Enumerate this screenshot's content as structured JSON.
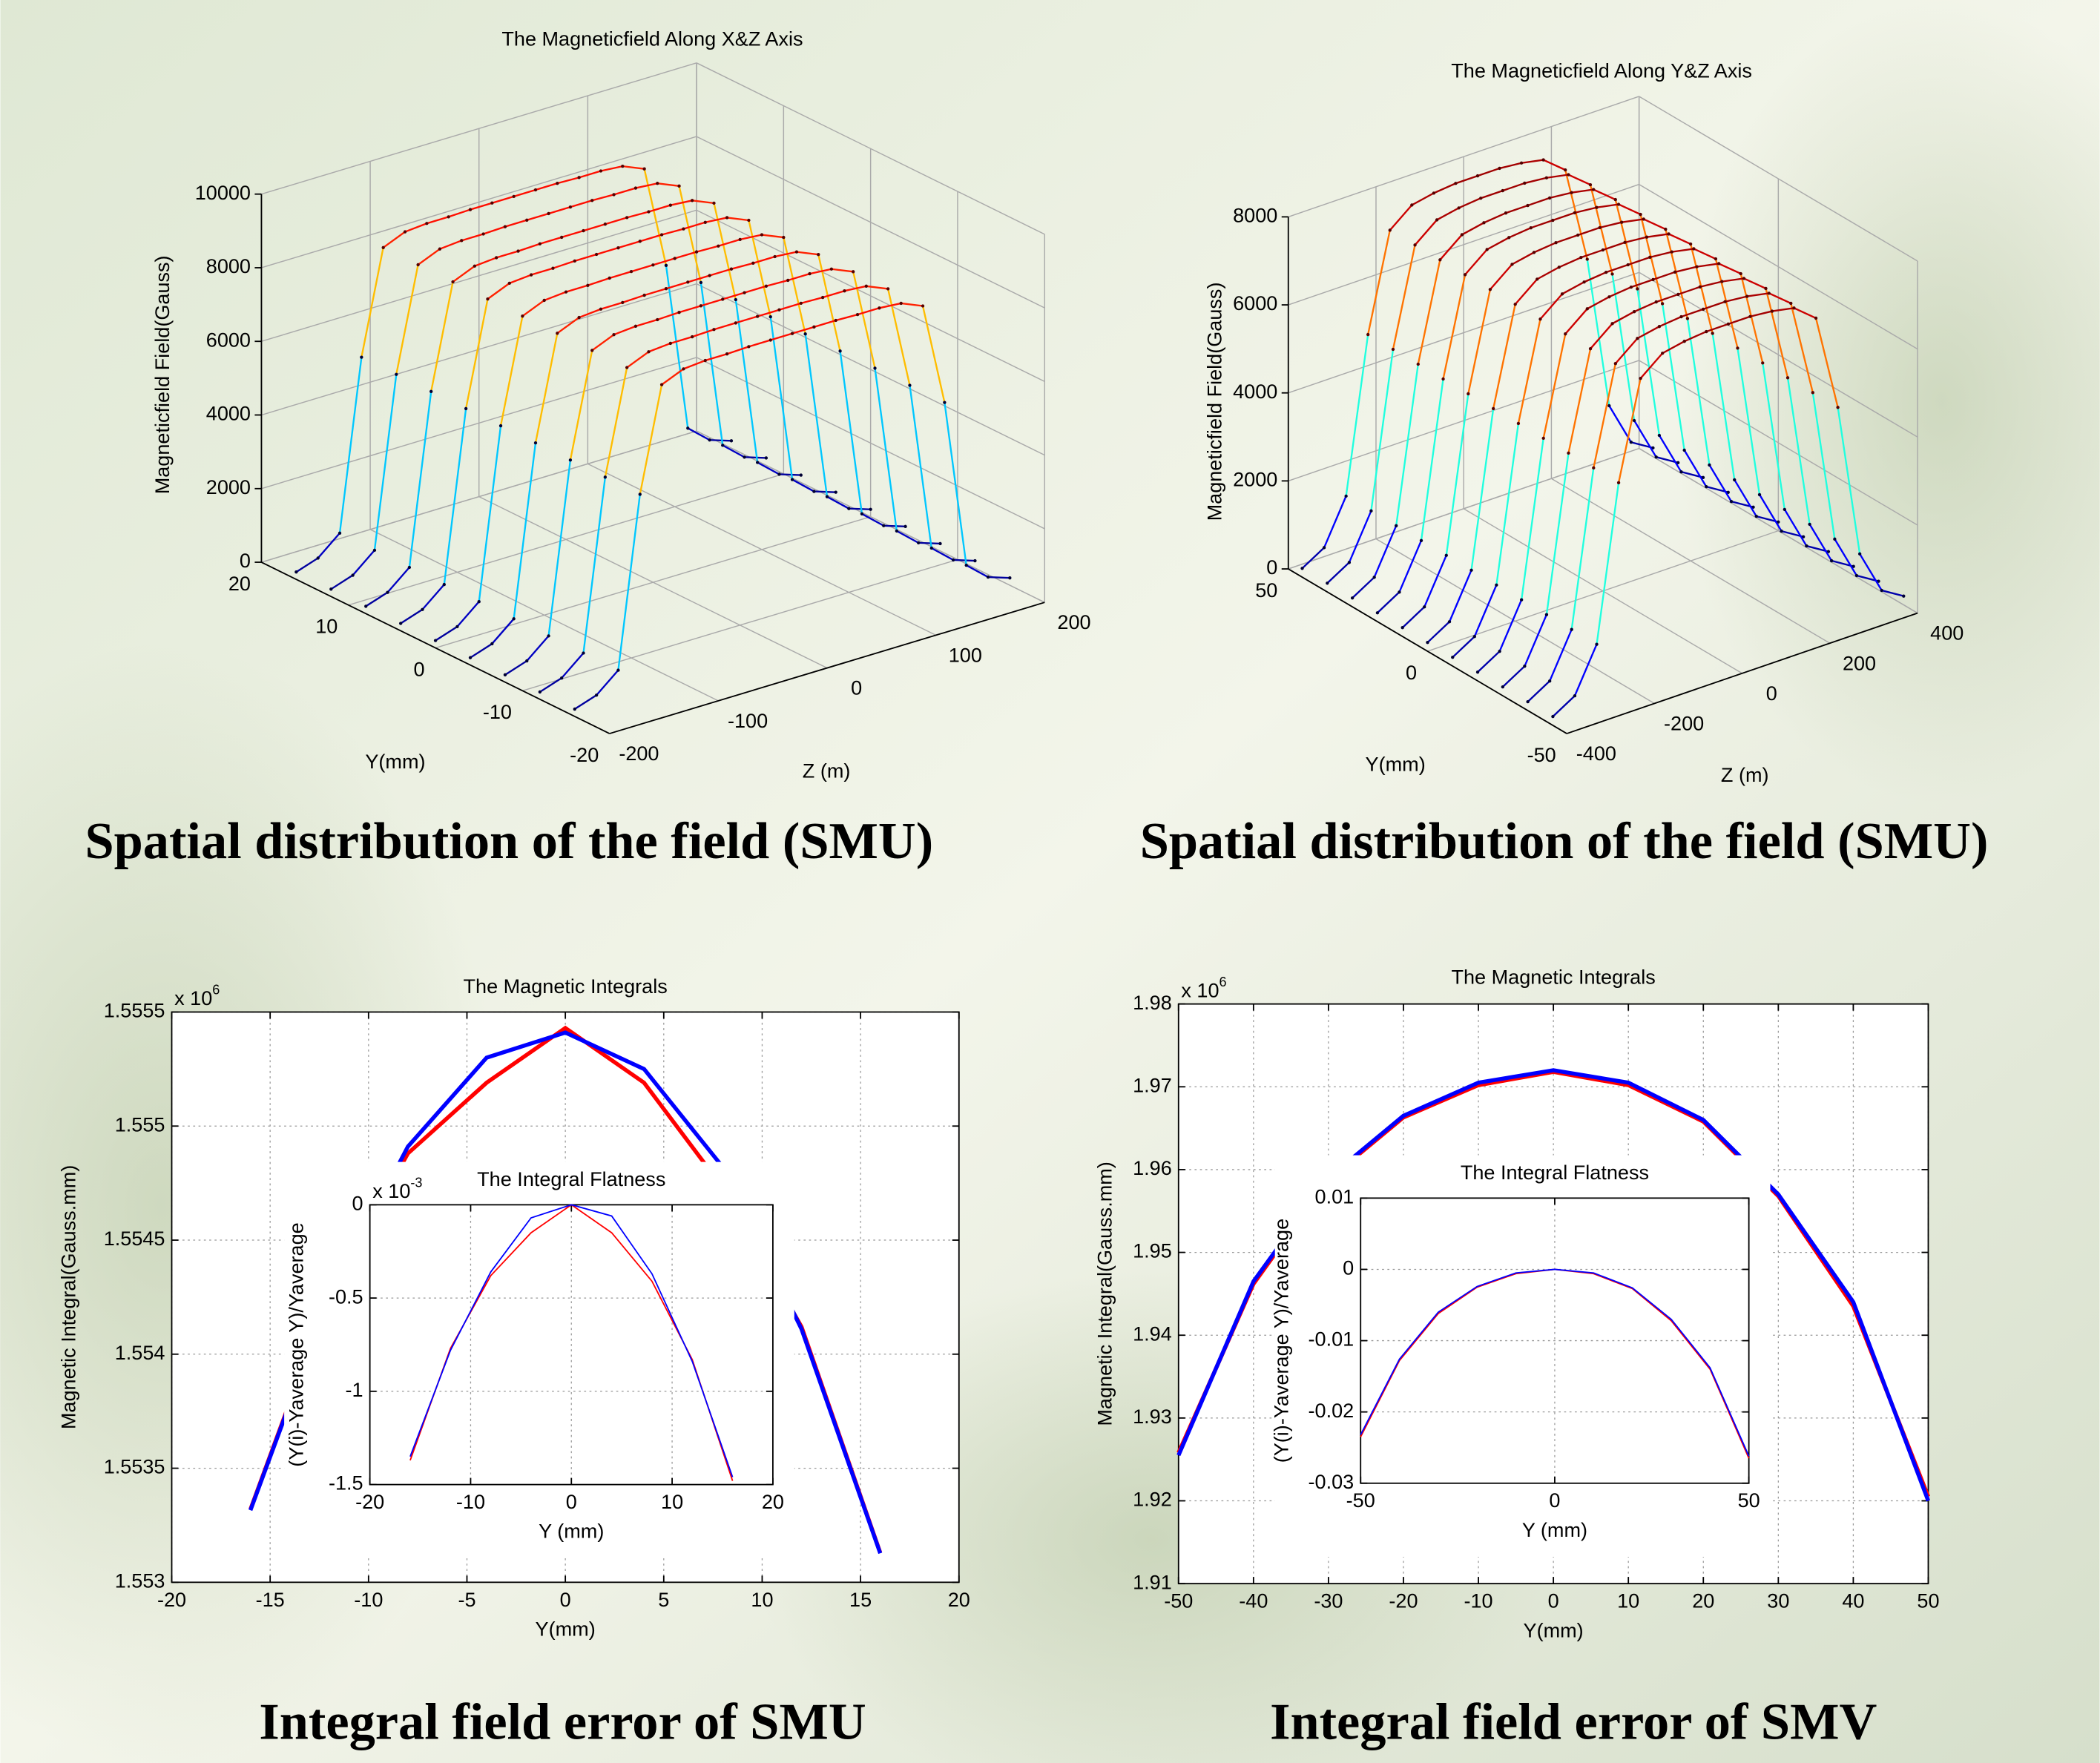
{
  "captions": [
    "Spatial distribution of the field (SMU)",
    "Spatial distribution of the field (SMU)",
    "Integral field error of SMU",
    "Integral field error of SMV"
  ],
  "chart_data": [
    {
      "type": "surface3d",
      "title": "The Magneticfield Along X&Z Axis",
      "y_label": "Y(mm)",
      "z_label": "Z (m)",
      "value_label": "Magneticfield Field(Gauss)",
      "ylim": [
        -20,
        20
      ],
      "yticks": [
        -20,
        -10,
        0,
        10,
        20
      ],
      "zlim": [
        -200,
        200
      ],
      "zticks": [
        -200,
        -100,
        0,
        100,
        200
      ],
      "vlim": [
        0,
        10000
      ],
      "vticks": [
        0,
        2000,
        4000,
        6000,
        8000,
        10000
      ],
      "grid": true,
      "z": [
        -200,
        -180,
        -160,
        -140,
        -120,
        -100,
        -80,
        -60,
        -40,
        -20,
        0,
        20,
        40,
        60,
        80,
        100,
        120,
        140,
        160,
        180,
        200
      ],
      "series": [
        {
          "y": 16,
          "values": [
            200,
            400,
            900,
            5500,
            8300,
            8550,
            8600,
            8600,
            8620,
            8620,
            8620,
            8620,
            8620,
            8600,
            8600,
            8550,
            8300,
            5500,
            900,
            400,
            200
          ]
        },
        {
          "y": 12,
          "values": [
            200,
            400,
            900,
            5500,
            8300,
            8550,
            8600,
            8600,
            8620,
            8620,
            8620,
            8620,
            8620,
            8600,
            8600,
            8550,
            8300,
            5500,
            900,
            400,
            200
          ]
        },
        {
          "y": 8,
          "values": [
            200,
            400,
            900,
            5500,
            8300,
            8550,
            8600,
            8600,
            8620,
            8620,
            8620,
            8620,
            8620,
            8600,
            8600,
            8550,
            8300,
            5500,
            900,
            400,
            200
          ]
        },
        {
          "y": 4,
          "values": [
            200,
            400,
            900,
            5500,
            8300,
            8550,
            8600,
            8600,
            8620,
            8620,
            8620,
            8620,
            8620,
            8600,
            8600,
            8550,
            8300,
            5500,
            900,
            400,
            200
          ]
        },
        {
          "y": 0,
          "values": [
            200,
            400,
            900,
            5500,
            8300,
            8550,
            8600,
            8600,
            8620,
            8620,
            8620,
            8620,
            8620,
            8600,
            8600,
            8550,
            8300,
            5500,
            900,
            400,
            200
          ]
        },
        {
          "y": -4,
          "values": [
            200,
            400,
            900,
            5500,
            8300,
            8550,
            8600,
            8600,
            8620,
            8620,
            8620,
            8620,
            8620,
            8600,
            8600,
            8550,
            8300,
            5500,
            900,
            400,
            200
          ]
        },
        {
          "y": -8,
          "values": [
            200,
            400,
            900,
            5500,
            8300,
            8550,
            8600,
            8600,
            8620,
            8620,
            8620,
            8620,
            8620,
            8600,
            8600,
            8550,
            8300,
            5500,
            900,
            400,
            200
          ]
        },
        {
          "y": -12,
          "values": [
            200,
            400,
            900,
            5500,
            8300,
            8550,
            8600,
            8600,
            8620,
            8620,
            8620,
            8620,
            8620,
            8600,
            8600,
            8550,
            8300,
            5500,
            900,
            400,
            200
          ]
        },
        {
          "y": -16,
          "values": [
            200,
            400,
            900,
            5500,
            8300,
            8550,
            8600,
            8600,
            8620,
            8620,
            8620,
            8620,
            8620,
            8600,
            8600,
            8550,
            8300,
            5500,
            900,
            400,
            200
          ]
        }
      ]
    },
    {
      "type": "surface3d",
      "title": "The Magneticfield Along Y&Z Axis",
      "y_label": "Y(mm)",
      "z_label": "Z (m)",
      "value_label": "Magneticfield Field(Gauss)",
      "ylim": [
        -50,
        50
      ],
      "yticks": [
        -50,
        0,
        50
      ],
      "zlim": [
        -400,
        400
      ],
      "zticks": [
        -400,
        -200,
        0,
        200,
        400
      ],
      "vlim": [
        0,
        8000
      ],
      "vticks": [
        0,
        2000,
        4000,
        6000,
        8000
      ],
      "grid": true,
      "z": [
        -400,
        -350,
        -300,
        -250,
        -200,
        -150,
        -100,
        -50,
        0,
        50,
        100,
        150,
        200,
        250,
        300,
        350,
        400
      ],
      "series": [
        {
          "y": 45,
          "values": [
            200,
            500,
            1500,
            5000,
            7200,
            7600,
            7700,
            7750,
            7750,
            7750,
            7700,
            7600,
            7200,
            5000,
            1500,
            500,
            200
          ]
        },
        {
          "y": 36,
          "values": [
            200,
            500,
            1500,
            5000,
            7200,
            7600,
            7700,
            7750,
            7750,
            7750,
            7700,
            7600,
            7200,
            5000,
            1500,
            500,
            200
          ]
        },
        {
          "y": 27,
          "values": [
            200,
            500,
            1500,
            5000,
            7200,
            7600,
            7700,
            7750,
            7750,
            7750,
            7700,
            7600,
            7200,
            5000,
            1500,
            500,
            200
          ]
        },
        {
          "y": 18,
          "values": [
            200,
            500,
            1500,
            5000,
            7200,
            7600,
            7700,
            7750,
            7750,
            7750,
            7700,
            7600,
            7200,
            5000,
            1500,
            500,
            200
          ]
        },
        {
          "y": 9,
          "values": [
            200,
            500,
            1500,
            5000,
            7200,
            7600,
            7700,
            7750,
            7750,
            7750,
            7700,
            7600,
            7200,
            5000,
            1500,
            500,
            200
          ]
        },
        {
          "y": 0,
          "values": [
            200,
            500,
            1500,
            5000,
            7200,
            7600,
            7700,
            7750,
            7750,
            7750,
            7700,
            7600,
            7200,
            5000,
            1500,
            500,
            200
          ]
        },
        {
          "y": -9,
          "values": [
            200,
            500,
            1500,
            5000,
            7200,
            7600,
            7700,
            7750,
            7750,
            7750,
            7700,
            7600,
            7200,
            5000,
            1500,
            500,
            200
          ]
        },
        {
          "y": -18,
          "values": [
            200,
            500,
            1500,
            5000,
            7200,
            7600,
            7700,
            7750,
            7750,
            7750,
            7700,
            7600,
            7200,
            5000,
            1500,
            500,
            200
          ]
        },
        {
          "y": -27,
          "values": [
            200,
            500,
            1500,
            5000,
            7200,
            7600,
            7700,
            7750,
            7750,
            7750,
            7700,
            7600,
            7200,
            5000,
            1500,
            500,
            200
          ]
        },
        {
          "y": -36,
          "values": [
            200,
            500,
            1500,
            5000,
            7200,
            7600,
            7700,
            7750,
            7750,
            7750,
            7700,
            7600,
            7200,
            5000,
            1500,
            500,
            200
          ]
        },
        {
          "y": -45,
          "values": [
            200,
            500,
            1500,
            5000,
            7200,
            7600,
            7700,
            7750,
            7750,
            7750,
            7700,
            7600,
            7200,
            5000,
            1500,
            500,
            200
          ]
        }
      ]
    },
    {
      "type": "line",
      "title": "The Magnetic Integrals",
      "xlabel": "Y(mm)",
      "ylabel": "Magnetic Integral(Gauss.mm)",
      "y_multiplier": {
        "base": "x 10",
        "exponent": "6"
      },
      "xlim": [
        -20,
        20
      ],
      "xticks": [
        -20,
        -15,
        -10,
        -5,
        0,
        5,
        10,
        15,
        20
      ],
      "ylim": [
        1.553,
        1.5555
      ],
      "yticks": [
        1.553,
        1.5535,
        1.554,
        1.5545,
        1.555,
        1.5555
      ],
      "grid": true,
      "x": [
        -16,
        -12,
        -8,
        -4,
        0,
        4,
        8,
        12,
        16
      ],
      "series": [
        {
          "color": "#ff0000",
          "values": [
            1.55332,
            1.55426,
            1.55488,
            1.55519,
            1.55543,
            1.55519,
            1.55473,
            1.55412,
            1.55313
          ]
        },
        {
          "color": "#0000ff",
          "values": [
            1.553316,
            1.55425,
            1.55491,
            1.5553,
            1.55541,
            1.55525,
            1.55482,
            1.55411,
            1.553127
          ]
        }
      ]
    },
    {
      "type": "line",
      "title": "The Integral Flatness",
      "xlabel": "Y (mm)",
      "ylabel": "(Y(i)-Yaverage Y)/Yaverage",
      "y_multiplier": {
        "base": "x 10",
        "exponent": "-3"
      },
      "xlim": [
        -20,
        20
      ],
      "xticks": [
        -20,
        -10,
        0,
        10,
        20
      ],
      "ylim": [
        -1.5,
        0
      ],
      "yticks": [
        -1.5,
        -1,
        -0.5,
        0
      ],
      "grid": true,
      "x": [
        -16,
        -12,
        -8,
        -4,
        0,
        4,
        8,
        12,
        16
      ],
      "series": [
        {
          "color": "#ff0000",
          "values": [
            -1.37,
            -0.77,
            -0.38,
            -0.15,
            0,
            -0.15,
            -0.41,
            -0.83,
            -1.48
          ]
        },
        {
          "color": "#0000ff",
          "values": [
            -1.35,
            -0.78,
            -0.36,
            -0.07,
            0,
            -0.06,
            -0.37,
            -0.84,
            -1.46
          ]
        }
      ]
    },
    {
      "type": "line",
      "title": "The Magnetic Integrals",
      "xlabel": "Y(mm)",
      "ylabel": "Magnetic Integral(Gauss.mm)",
      "y_multiplier": {
        "base": "x 10",
        "exponent": "6"
      },
      "xlim": [
        -50,
        50
      ],
      "xticks": [
        -50,
        -40,
        -30,
        -20,
        -10,
        0,
        10,
        20,
        30,
        40,
        50
      ],
      "ylim": [
        1.91,
        1.98
      ],
      "yticks": [
        1.91,
        1.92,
        1.93,
        1.94,
        1.95,
        1.96,
        1.97,
        1.98
      ],
      "grid": true,
      "x": [
        -50,
        -40,
        -30,
        -20,
        -10,
        0,
        10,
        20,
        30,
        40,
        50
      ],
      "series": [
        {
          "color": "#ff0000",
          "values": [
            1.9258,
            1.9462,
            1.9588,
            1.9663,
            1.9702,
            1.9718,
            1.9702,
            1.9658,
            1.9568,
            1.9435,
            1.9205
          ]
        },
        {
          "color": "#0000ff",
          "values": [
            1.9255,
            1.9465,
            1.959,
            1.9665,
            1.9705,
            1.972,
            1.9705,
            1.966,
            1.957,
            1.944,
            1.92
          ]
        }
      ]
    },
    {
      "type": "line",
      "title": "The Integral Flatness",
      "xlabel": "Y (mm)",
      "ylabel": "(Y(i)-Yaverage Y)/Yaverage",
      "xlim": [
        -50,
        50
      ],
      "xticks": [
        -50,
        0,
        50
      ],
      "ylim": [
        -0.03,
        0.01
      ],
      "yticks": [
        -0.03,
        -0.02,
        -0.01,
        0,
        0.01
      ],
      "grid": true,
      "x": [
        -50,
        -40,
        -30,
        -20,
        -10,
        0,
        10,
        20,
        30,
        40,
        50
      ],
      "series": [
        {
          "color": "#ff0000",
          "values": [
            -0.0235,
            -0.0128,
            -0.0062,
            -0.0025,
            -0.0006,
            0,
            -0.0006,
            -0.0027,
            -0.0072,
            -0.014,
            -0.0265
          ]
        },
        {
          "color": "#0000ff",
          "values": [
            -0.0232,
            -0.0126,
            -0.006,
            -0.0024,
            -0.0005,
            0,
            -0.0005,
            -0.0026,
            -0.007,
            -0.0138,
            -0.0262
          ]
        }
      ]
    }
  ]
}
